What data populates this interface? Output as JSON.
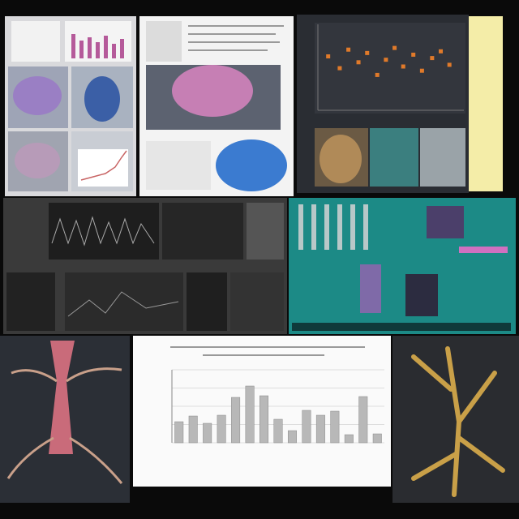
{
  "panels": {
    "bar_chart": {
      "type": "bar",
      "values": [
        26,
        33,
        24,
        34,
        56,
        70,
        58,
        29,
        15,
        40,
        34,
        39,
        10,
        57,
        11
      ],
      "ylim": [
        0,
        90
      ]
    },
    "scatter": {
      "type": "scatter",
      "x": [
        6,
        14,
        20,
        27,
        33,
        40,
        46,
        52,
        58,
        65,
        71,
        78,
        84,
        90
      ],
      "y": [
        62,
        48,
        70,
        55,
        66,
        40,
        58,
        72,
        50,
        64,
        45,
        60,
        68,
        52
      ],
      "xlim": [
        0,
        100
      ],
      "ylim": [
        0,
        100
      ]
    }
  }
}
